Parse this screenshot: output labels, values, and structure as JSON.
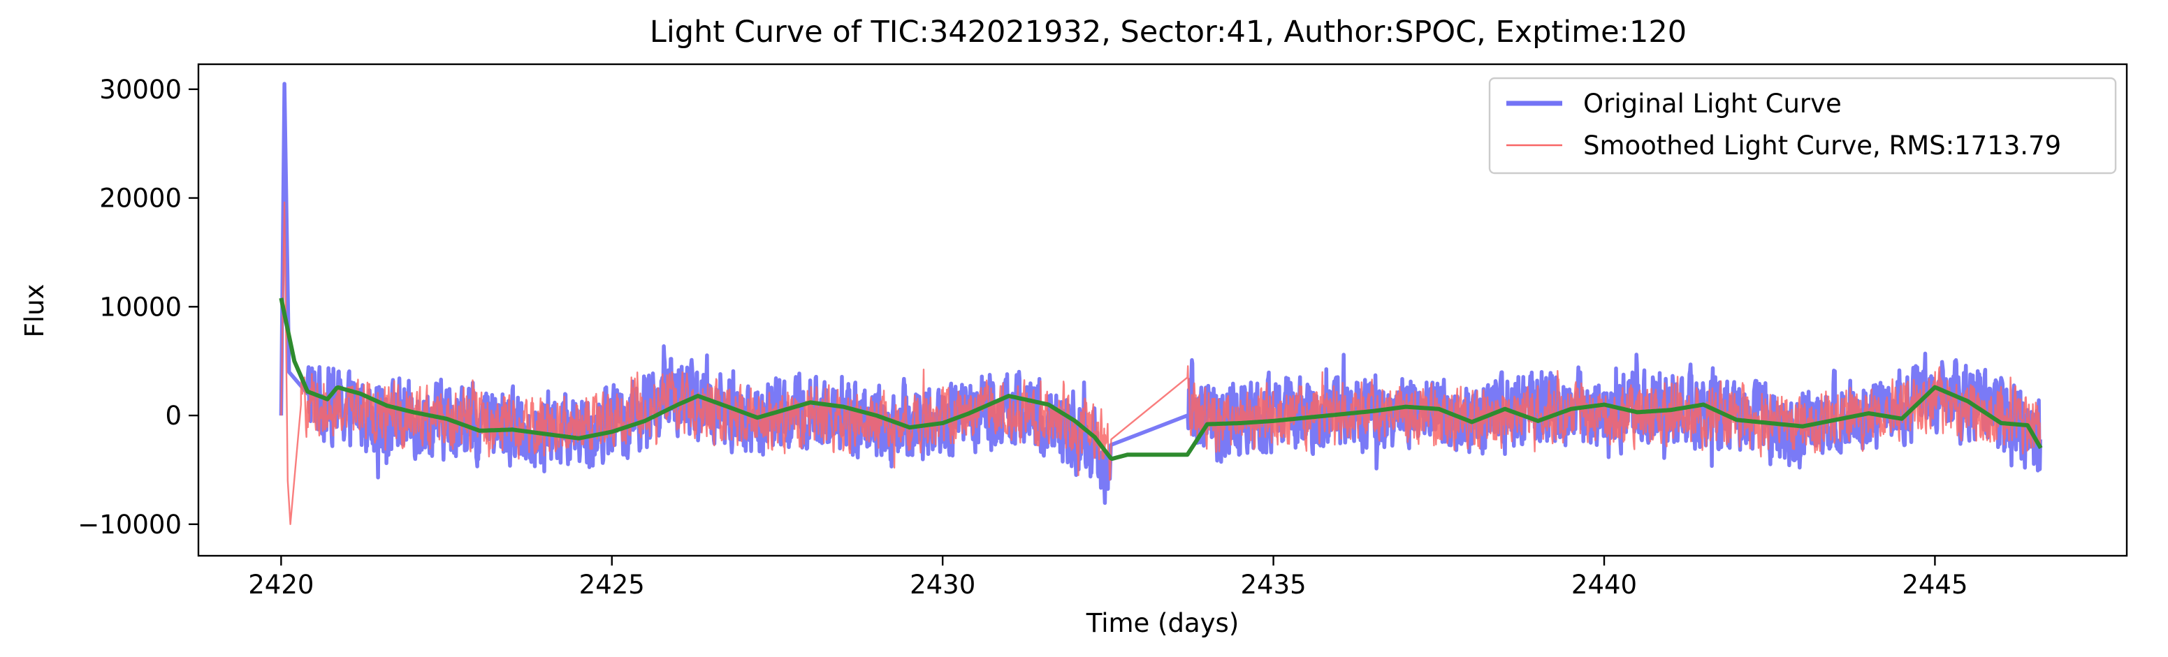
{
  "chart_data": {
    "type": "line",
    "title": "Light Curve of TIC:342021932, Sector:41, Author:SPOC, Exptime:120",
    "xlabel": "Time (days)",
    "ylabel": "Flux",
    "xlim": [
      2418.75,
      2447.9
    ],
    "ylim": [
      -12900,
      32300
    ],
    "xticks": [
      2420,
      2425,
      2430,
      2435,
      2440,
      2445
    ],
    "yticks": [
      -10000,
      0,
      10000,
      20000,
      30000
    ],
    "ytick_labels": [
      "−10000",
      "0",
      "10000",
      "20000",
      "30000"
    ],
    "grid": false,
    "legend_position": "top-right",
    "gap": [
      2432.55,
      2433.7
    ],
    "series": [
      {
        "name": "Original Light Curve",
        "color": "#7373f5",
        "legend": true,
        "amp": 3300,
        "trend": [
          [
            2420.0,
            0
          ],
          [
            2420.05,
            30500
          ],
          [
            2420.12,
            4000
          ],
          [
            2420.4,
            2000
          ],
          [
            2421,
            500
          ],
          [
            2422,
            -300
          ],
          [
            2423,
            -700
          ],
          [
            2424,
            -1500
          ],
          [
            2425,
            -500
          ],
          [
            2426,
            1800
          ],
          [
            2426.5,
            1000
          ],
          [
            2427,
            -600
          ],
          [
            2428,
            200
          ],
          [
            2429,
            -800
          ],
          [
            2430,
            -400
          ],
          [
            2431,
            800
          ],
          [
            2432,
            -1500
          ],
          [
            2432.55,
            -4800
          ],
          [
            2433.7,
            0
          ],
          [
            2433.75,
            1800
          ],
          [
            2434,
            -600
          ],
          [
            2435,
            -200
          ],
          [
            2436,
            200
          ],
          [
            2437,
            600
          ],
          [
            2438,
            -500
          ],
          [
            2439,
            900
          ],
          [
            2440,
            300
          ],
          [
            2441,
            900
          ],
          [
            2442,
            -200
          ],
          [
            2442.8,
            -1200
          ],
          [
            2443.5,
            300
          ],
          [
            2444.5,
            1000
          ],
          [
            2445,
            2600
          ],
          [
            2445.5,
            1000
          ],
          [
            2446.2,
            -900
          ],
          [
            2446.6,
            -2000
          ]
        ]
      },
      {
        "name": "Smoothed Light Curve, RMS:1713.79",
        "color": "#f86666",
        "legend": true,
        "amp": 2600,
        "trend": [
          [
            2420.0,
            0
          ],
          [
            2420.05,
            19600
          ],
          [
            2420.1,
            -6000
          ],
          [
            2420.14,
            -10000
          ],
          [
            2420.3,
            1000
          ],
          [
            2421,
            800
          ],
          [
            2422,
            -200
          ],
          [
            2423,
            -600
          ],
          [
            2424,
            -1200
          ],
          [
            2425,
            -300
          ],
          [
            2426,
            1500
          ],
          [
            2427,
            -400
          ],
          [
            2428,
            100
          ],
          [
            2429,
            -600
          ],
          [
            2430,
            -300
          ],
          [
            2431,
            600
          ],
          [
            2432,
            -1000
          ],
          [
            2432.55,
            -3000
          ],
          [
            2433.7,
            3500
          ],
          [
            2433.75,
            800
          ],
          [
            2434,
            -500
          ],
          [
            2436,
            200
          ],
          [
            2438,
            -300
          ],
          [
            2440,
            300
          ],
          [
            2442,
            -100
          ],
          [
            2442.8,
            -1000
          ],
          [
            2444,
            0
          ],
          [
            2445,
            1500
          ],
          [
            2446,
            -300
          ],
          [
            2446.6,
            -1000
          ]
        ]
      },
      {
        "name": "",
        "color": "#2e8b2e",
        "legend": false,
        "amp": 0,
        "trend": [
          [
            2420.0,
            10800
          ],
          [
            2420.2,
            5000
          ],
          [
            2420.4,
            2200
          ],
          [
            2420.7,
            1500
          ],
          [
            2420.85,
            2600
          ],
          [
            2421.2,
            2000
          ],
          [
            2421.6,
            900
          ],
          [
            2422,
            300
          ],
          [
            2422.5,
            -300
          ],
          [
            2423,
            -1400
          ],
          [
            2423.5,
            -1300
          ],
          [
            2424,
            -1700
          ],
          [
            2424.5,
            -2100
          ],
          [
            2425,
            -1500
          ],
          [
            2425.5,
            -500
          ],
          [
            2426,
            1000
          ],
          [
            2426.3,
            1800
          ],
          [
            2426.8,
            700
          ],
          [
            2427.2,
            -200
          ],
          [
            2427.6,
            500
          ],
          [
            2428,
            1200
          ],
          [
            2428.5,
            800
          ],
          [
            2429,
            0
          ],
          [
            2429.5,
            -1100
          ],
          [
            2430,
            -700
          ],
          [
            2430.4,
            200
          ],
          [
            2431,
            1800
          ],
          [
            2431.6,
            1000
          ],
          [
            2432,
            -500
          ],
          [
            2432.3,
            -2000
          ],
          [
            2432.55,
            -4000
          ],
          [
            2432.8,
            -3600
          ],
          [
            2433.7,
            -3600
          ],
          [
            2434,
            -800
          ],
          [
            2434.5,
            -700
          ],
          [
            2435,
            -500
          ],
          [
            2435.5,
            -200
          ],
          [
            2436,
            100
          ],
          [
            2436.5,
            400
          ],
          [
            2437,
            800
          ],
          [
            2437.5,
            600
          ],
          [
            2438,
            -600
          ],
          [
            2438.5,
            600
          ],
          [
            2439,
            -500
          ],
          [
            2439.5,
            600
          ],
          [
            2440,
            1000
          ],
          [
            2440.5,
            300
          ],
          [
            2441,
            500
          ],
          [
            2441.5,
            1000
          ],
          [
            2442,
            -400
          ],
          [
            2442.5,
            -700
          ],
          [
            2443,
            -1000
          ],
          [
            2443.5,
            -400
          ],
          [
            2444,
            200
          ],
          [
            2444.5,
            -300
          ],
          [
            2445,
            2600
          ],
          [
            2445.5,
            1300
          ],
          [
            2446,
            -700
          ],
          [
            2446.4,
            -900
          ],
          [
            2446.6,
            -3000
          ]
        ]
      }
    ]
  }
}
